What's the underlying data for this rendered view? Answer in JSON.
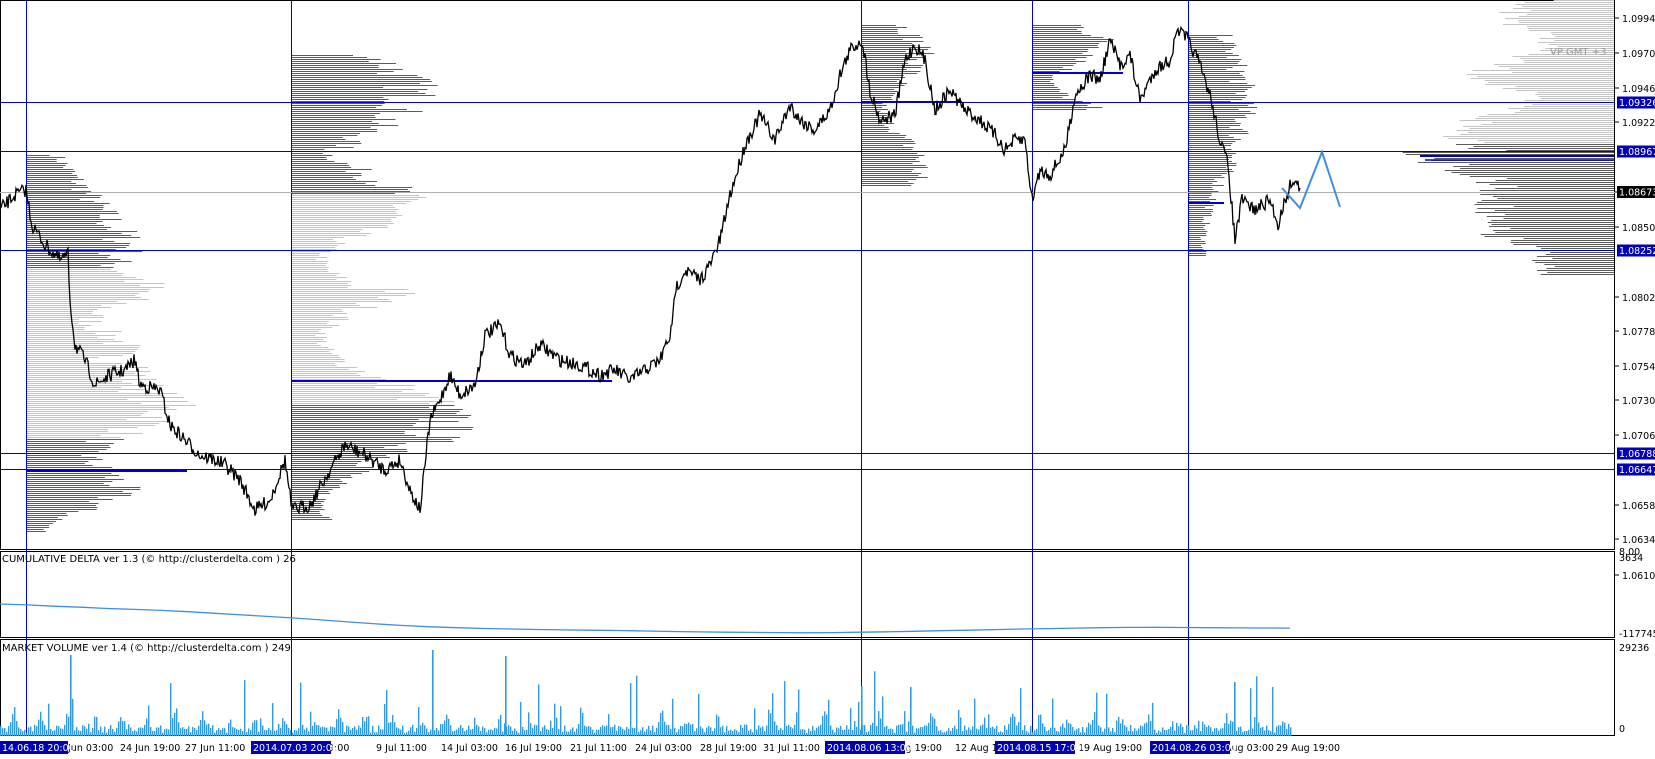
{
  "colors": {
    "background": "#ffffff",
    "frame": "#000000",
    "level_line": "#0000cc",
    "level_label_bg": "#0000b4",
    "profile_dark": "#5c5c5c",
    "profile_light": "#c4c4c4",
    "poc": "#0000cc",
    "price": "#000000",
    "forecast": "#3f8fdf",
    "cum_delta": "#3f8fdf",
    "volume": "#2f9be6",
    "current_price_line": "#b0b0b0",
    "current_price_label_bg": "#000000"
  },
  "main_chart": {
    "price_scale": [
      "1.09940",
      "1.09700",
      "1.09460",
      "1.09220",
      "1.08740",
      "1.08500",
      "1.08020",
      "1.07785",
      "1.07545",
      "1.07305",
      "1.07065",
      "1.06585",
      "1.06345",
      "1.06105"
    ],
    "partial_scale_label": "1.06825",
    "level_labels": [
      "1.09326",
      "1.08967",
      "1.08252",
      "1.06788",
      "1.06647"
    ],
    "current_price": "1.08673",
    "profile_caption": "VP GMT +3"
  },
  "cumulative_delta": {
    "title": "CUMULATIVE DELTA ver 1.3 (© http://clusterdelta.com ) 26",
    "scale_top": "3634",
    "scale_top_overlap": "8.00",
    "scale_bottom": "-117745",
    "y_range": [
      -117745,
      3634
    ],
    "values": [
      -71000,
      -72500,
      -74500,
      -76000,
      -78000,
      -79500,
      -81000,
      -83000,
      -85500,
      -88000,
      -90500,
      -93000,
      -96000,
      -99000,
      -102000,
      -104500,
      -106500,
      -108000,
      -109200,
      -110000,
      -110800,
      -111300,
      -111800,
      -112300,
      -113000,
      -113800,
      -114500,
      -115000,
      -115300,
      -115600,
      -115800,
      -115500,
      -115000,
      -114300,
      -113500,
      -112600,
      -111800,
      -110900,
      -110000,
      -109300,
      -108600,
      -108000,
      -107500,
      -107300,
      -107600,
      -108000,
      -108300,
      -108400,
      -108600
    ]
  },
  "market_volume": {
    "title": "MARKET VOLUME ver 1.4 (© http://clusterdelta.com ) 249",
    "scale_top": "29236",
    "scale_bottom": "0",
    "max": 29236
  },
  "time_axis": {
    "plain_labels": [
      "Jun 03:00",
      "24 Jun 19:00",
      "27 Jun 11:00",
      "19:00",
      "9 Jul 11:00",
      "14 Jul 03:00",
      "16 Jul 19:00",
      "21 Jul 11:00",
      "24 Jul 03:00",
      "28 Jul 19:00",
      "31 Jul 11:00",
      "Aug 19:00",
      "12 Aug 1",
      "19 Aug 19:00",
      "Aug 03:00",
      "29 Aug 19:00"
    ],
    "highlighted_labels": [
      "14.06.18 20:00",
      "2014.07.03 20:00",
      "2014.08.06 13:00",
      "2014.08.15 17:00",
      "2014.08.26 03:00"
    ]
  }
}
